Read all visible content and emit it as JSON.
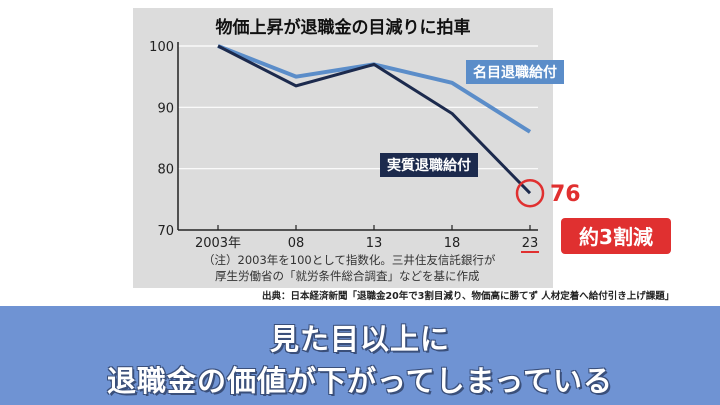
{
  "chart_data": {
    "type": "line",
    "title": "物価上昇が退職金の目減りに拍車",
    "x": [
      "2003年",
      "08",
      "13",
      "18",
      "23"
    ],
    "ylim": [
      70,
      100
    ],
    "yticks": [
      "100",
      "90",
      "80",
      "70"
    ],
    "series": [
      {
        "name": "名目退職給付",
        "values": [
          100,
          95,
          97,
          94,
          86
        ],
        "color": "#5b8dc9"
      },
      {
        "name": "実質退職給付",
        "values": [
          100,
          93.5,
          97,
          89,
          76
        ],
        "color": "#1c2a4d"
      }
    ],
    "end_value_label": "76",
    "reduction_badge": "約3割減",
    "note_line_1": "（注）2003年を100として指数化。三井住友信託銀行が",
    "note_line_2": "厚生労働省の「就労条件総合調査」などを基に作成",
    "accent_color": "#e03030"
  },
  "source": "出典：日本経済新聞「退職金20年で3割目減り、物価高に勝てず 人材定着へ給付引き上げ課題」",
  "banner": {
    "line1": "見た目以上に",
    "line2": "退職金の価値が下がってしまっている"
  }
}
